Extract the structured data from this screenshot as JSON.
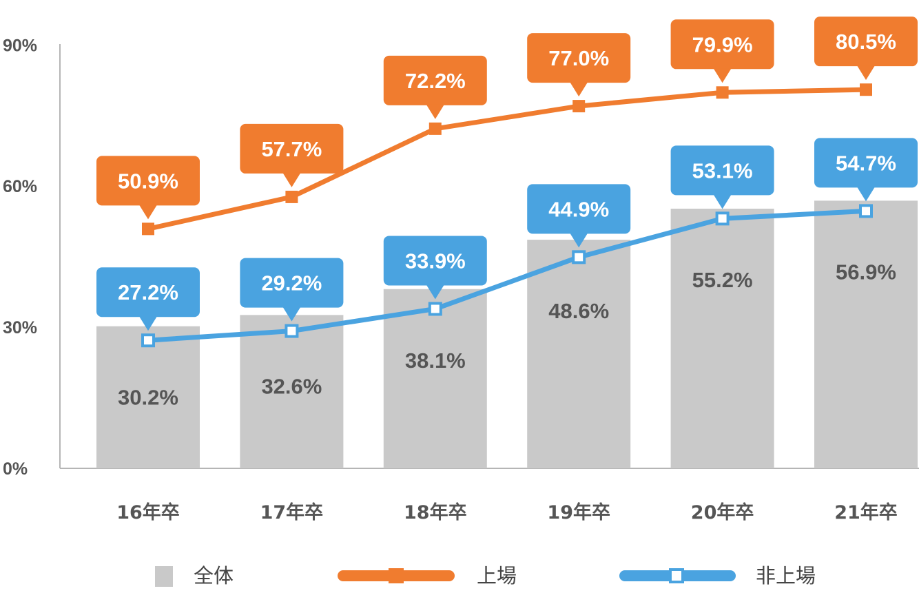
{
  "chart_data": {
    "type": "bar",
    "categories": [
      "16年卒",
      "17年卒",
      "18年卒",
      "19年卒",
      "20年卒",
      "21年卒"
    ],
    "ylim": [
      0,
      90
    ],
    "yticks": [
      "0%",
      "30%",
      "60%",
      "90%"
    ],
    "y_tick_values": [
      0,
      30,
      60,
      90
    ],
    "grid": false,
    "legend_position": "bottom",
    "series": [
      {
        "name": "全体",
        "kind": "bar",
        "color": "#c9c9c9",
        "values": [
          30.2,
          32.6,
          38.1,
          48.6,
          55.2,
          56.9
        ],
        "labels": [
          "30.2%",
          "32.6%",
          "38.1%",
          "48.6%",
          "55.2%",
          "56.9%"
        ]
      },
      {
        "name": "上場",
        "kind": "line",
        "color": "#f07c2f",
        "marker": "square-filled",
        "values": [
          50.9,
          57.7,
          72.2,
          77.0,
          79.9,
          80.5
        ],
        "labels": [
          "50.9%",
          "57.7%",
          "72.2%",
          "77.0%",
          "79.9%",
          "80.5%"
        ]
      },
      {
        "name": "非上場",
        "kind": "line",
        "color": "#4aa3e0",
        "marker": "square-hollow",
        "values": [
          27.2,
          29.2,
          33.9,
          44.9,
          53.1,
          54.7
        ],
        "labels": [
          "27.2%",
          "29.2%",
          "33.9%",
          "44.9%",
          "53.1%",
          "54.7%"
        ]
      }
    ]
  }
}
